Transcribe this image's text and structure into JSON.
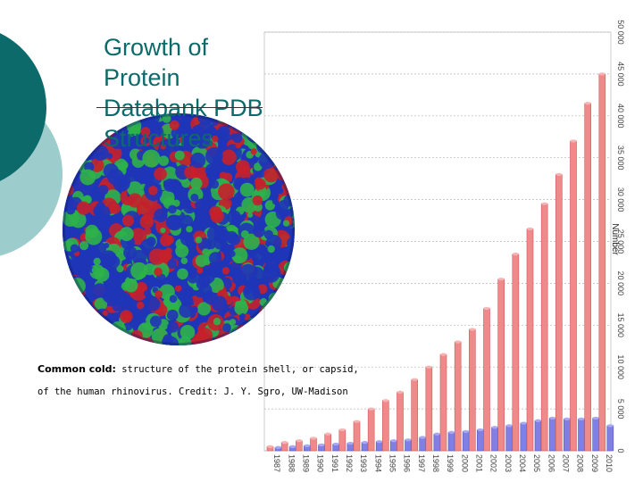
{
  "slide": {
    "title_line1": "Growth of Protein Databank PDB",
    "title_line2": "Structures"
  },
  "caption": {
    "lead": "Common cold:",
    "line1_rest": " structure of the protein shell, or capsid,",
    "line2": "of the human rhinovirus. Credit: J. Y. Sgro, UW-Madison"
  },
  "image": {
    "subject": "rhinovirus capsid molecular model",
    "colors": [
      "#1f35b8",
      "#2db34a",
      "#c6202a"
    ]
  },
  "colors": {
    "accent_dark_teal": "#0c6a6a",
    "accent_light_teal": "#9ccccc",
    "bar_red": "#f08a8a",
    "bar_blue": "#7f7fe6"
  },
  "chart_data": {
    "type": "bar",
    "categories": [
      "1987",
      "1988",
      "1989",
      "1990",
      "1991",
      "1992",
      "1993",
      "1994",
      "1995",
      "1996",
      "1997",
      "1998",
      "1999",
      "2000",
      "2001",
      "2002",
      "2003",
      "2004",
      "2005",
      "2006",
      "2007",
      "2008",
      "2009",
      "2010"
    ],
    "series": [
      {
        "name": "",
        "color": "#f08a8a",
        "values": [
          500,
          1000,
          1200,
          1500,
          2000,
          2500,
          3500,
          5000,
          6000,
          7000,
          8500,
          10000,
          11500,
          13000,
          14500,
          17000,
          20500,
          23500,
          26500,
          29500,
          33000,
          37000,
          41500,
          45000
        ]
      },
      {
        "name": "",
        "color": "#7f7fe6",
        "values": [
          400,
          500,
          600,
          700,
          800,
          900,
          1000,
          1100,
          1200,
          1300,
          1600,
          2000,
          2200,
          2300,
          2500,
          2800,
          3000,
          3300,
          3600,
          3900,
          3800,
          3800,
          3900,
          3000
        ]
      }
    ],
    "ylabel": "Number",
    "ylim": [
      0,
      50000
    ],
    "yticks": [
      0,
      5000,
      10000,
      15000,
      20000,
      25000,
      30000,
      35000,
      40000,
      45000,
      50000
    ],
    "ytick_labels": [
      "0",
      "5 000",
      "10 000",
      "15 000",
      "20 000",
      "25 000",
      "30 000",
      "35 000",
      "40 000",
      "45 000",
      "50 000"
    ],
    "grid": true
  }
}
